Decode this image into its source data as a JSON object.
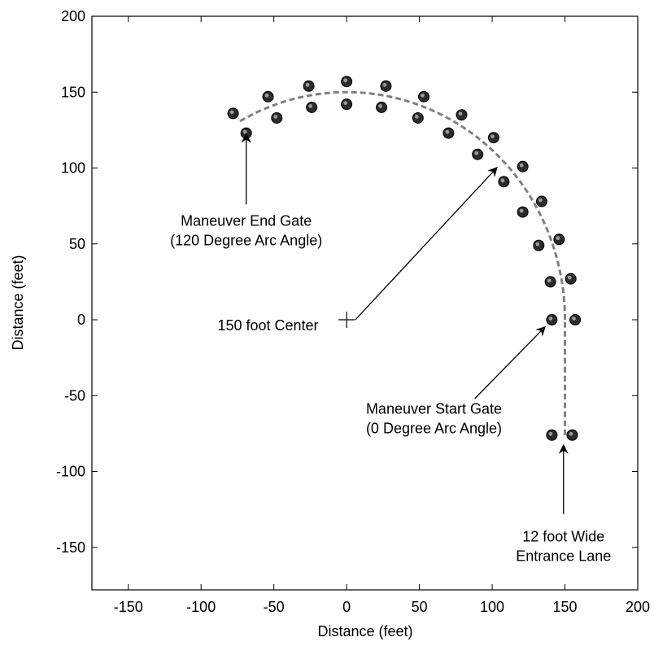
{
  "chart_data": {
    "type": "scatter",
    "xlabel": "Distance (feet)",
    "ylabel": "Distance (feet)",
    "xlim": [
      -175,
      200
    ],
    "ylim": [
      -178,
      200
    ],
    "x_ticks": [
      -150,
      -100,
      -50,
      0,
      50,
      100,
      150,
      200
    ],
    "y_ticks": [
      -150,
      -100,
      -50,
      0,
      50,
      100,
      150,
      200
    ],
    "grid": false,
    "series": [
      {
        "role": "gate-cones",
        "color": "#2b2b2b",
        "points": [
          [
            -78,
            136
          ],
          [
            -69,
            123
          ],
          [
            -54,
            147
          ],
          [
            -48,
            133
          ],
          [
            -26,
            154
          ],
          [
            -24,
            140
          ],
          [
            0,
            157
          ],
          [
            0,
            142
          ],
          [
            27,
            154
          ],
          [
            24,
            140
          ],
          [
            53,
            147
          ],
          [
            49,
            133
          ],
          [
            79,
            135
          ],
          [
            70,
            123
          ],
          [
            101,
            120
          ],
          [
            90,
            109
          ],
          [
            121,
            101
          ],
          [
            108,
            91
          ],
          [
            134,
            78
          ],
          [
            121,
            71
          ],
          [
            146,
            53
          ],
          [
            132,
            49
          ],
          [
            154,
            27
          ],
          [
            140,
            25
          ],
          [
            157,
            0
          ],
          [
            141,
            0
          ],
          [
            155,
            -76
          ],
          [
            141,
            -76
          ]
        ]
      },
      {
        "role": "path",
        "color": "#808080",
        "dashed": true,
        "arc_center": [
          0,
          0
        ],
        "arc_radius": 150,
        "arc_start_deg": 0,
        "arc_end_deg": 120,
        "entrance_line": [
          [
            150,
            -76
          ],
          [
            150,
            0
          ]
        ]
      }
    ],
    "center_marker": [
      0,
      0
    ],
    "annotations": [
      {
        "lines": [
          "Maneuver End Gate",
          "(120 Degree Arc Angle)"
        ],
        "text_at": [
          -69,
          62
        ],
        "arrow_from": [
          -69,
          76
        ],
        "arrow_to": [
          -69,
          122
        ]
      },
      {
        "lines": [
          "150 foot Center"
        ],
        "text_at": [
          -54,
          -7
        ],
        "arrow_from": [
          6,
          0
        ],
        "arrow_to": [
          103,
          100
        ]
      },
      {
        "lines": [
          "Maneuver Start Gate",
          "(0 Degree Arc Angle)"
        ],
        "text_at": [
          60,
          -62
        ],
        "arrow_from": [
          88,
          -52
        ],
        "arrow_to": [
          136,
          -5
        ]
      },
      {
        "lines": [
          "12 foot Wide",
          "Entrance Lane"
        ],
        "text_at": [
          149,
          -146
        ],
        "arrow_from": [
          149,
          -128
        ],
        "arrow_to": [
          149,
          -83
        ]
      }
    ]
  }
}
